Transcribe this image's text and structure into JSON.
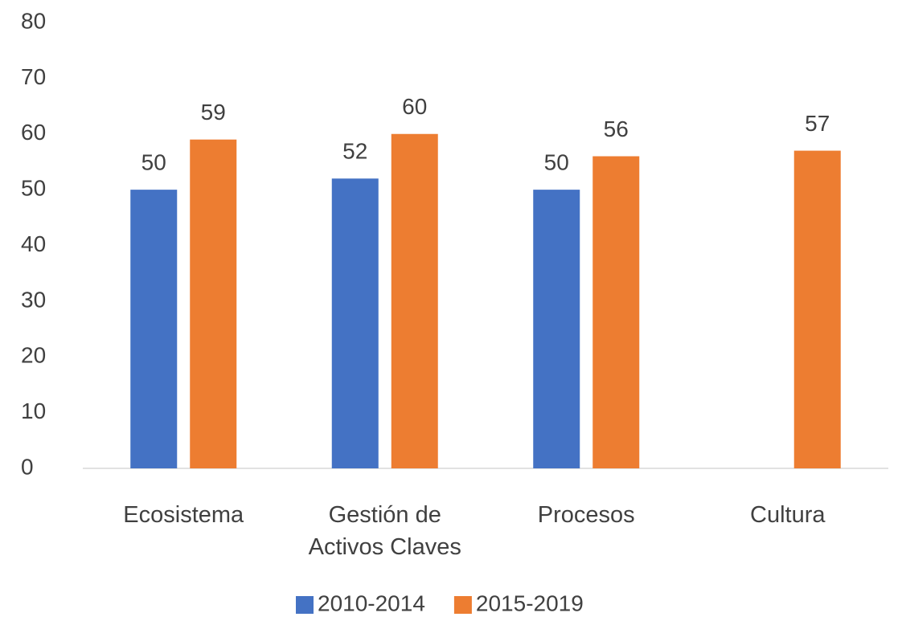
{
  "chart_data": {
    "type": "bar",
    "categories": [
      "Ecosistema",
      "Gestión de Activos Claves",
      "Procesos",
      "Cultura"
    ],
    "series": [
      {
        "name": "2010-2014",
        "color": "#4472c4",
        "values": [
          50,
          52,
          50,
          null
        ]
      },
      {
        "name": "2015-2019",
        "color": "#ed7d31",
        "values": [
          59,
          60,
          56,
          57
        ]
      }
    ],
    "ylim": [
      0,
      80
    ],
    "yticks": [
      0,
      10,
      20,
      30,
      40,
      50,
      60,
      70,
      80
    ],
    "grid": false,
    "legend": "bottom"
  }
}
